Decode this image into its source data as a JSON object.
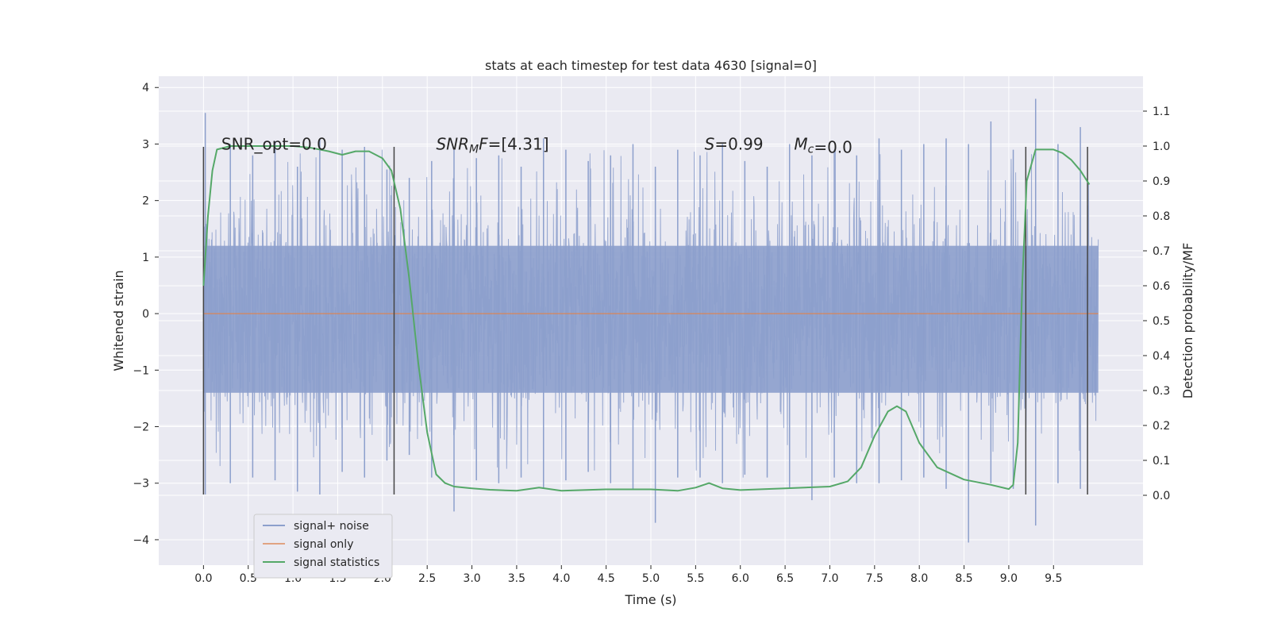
{
  "chart_data": {
    "type": "line",
    "title": "stats at each timestep for test data 4630 [signal=0]",
    "xlabel": "Time (s)",
    "ylabel_left": "Whitened strain",
    "ylabel_right": "Detection probability/MF",
    "xlim": [
      -0.5,
      10.5
    ],
    "ylim_left": [
      -4.45,
      4.2
    ],
    "ylim_right": [
      -0.2,
      1.2
    ],
    "x_ticks": [
      0.0,
      0.5,
      1.0,
      1.5,
      2.0,
      2.5,
      3.0,
      3.5,
      4.0,
      4.5,
      5.0,
      5.5,
      6.0,
      6.5,
      7.0,
      7.5,
      8.0,
      8.5,
      9.0,
      9.5
    ],
    "x_tick_labels": [
      "0.0",
      "0.5",
      "1.0",
      "1.5",
      "2.0",
      "2.5",
      "3.0",
      "3.5",
      "4.0",
      "4.5",
      "5.0",
      "5.5",
      "6.0",
      "6.5",
      "7.0",
      "7.5",
      "8.0",
      "8.5",
      "9.0",
      "9.5"
    ],
    "y_left_ticks": [
      -4,
      -3,
      -2,
      -1,
      0,
      1,
      2,
      3,
      4
    ],
    "y_left_tick_labels": [
      "−4",
      "−3",
      "−2",
      "−1",
      "0",
      "1",
      "2",
      "3",
      "4"
    ],
    "y_right_ticks": [
      0.0,
      0.1,
      0.2,
      0.3,
      0.4,
      0.5,
      0.6,
      0.7,
      0.8,
      0.9,
      1.0,
      1.1
    ],
    "y_right_tick_labels": [
      "0.0",
      "0.1",
      "0.2",
      "0.3",
      "0.4",
      "0.5",
      "0.6",
      "0.7",
      "0.8",
      "0.9",
      "1.0",
      "1.1"
    ],
    "grid": true,
    "legend_position": "lower-left",
    "annotations": [
      {
        "text": "SNR_opt=0.0",
        "x": 0.2,
        "y": 3.0
      },
      {
        "text": "SNR_MF=[4.31]",
        "x": 2.6,
        "y": 3.0
      },
      {
        "text": "S=0.99",
        "x": 5.6,
        "y": 3.0
      },
      {
        "text": "M_c=0.0",
        "x": 6.6,
        "y": 3.0
      }
    ],
    "window_markers": [
      {
        "x": 0.0,
        "y_bottom": -3.2,
        "y_top": 2.95
      },
      {
        "x": 2.13,
        "y_bottom": -3.2,
        "y_top": 2.95
      },
      {
        "x": 9.19,
        "y_bottom": -3.2,
        "y_top": 2.95
      },
      {
        "x": 9.88,
        "y_bottom": -3.2,
        "y_top": 2.95
      }
    ],
    "series": [
      {
        "name": "signal+ noise",
        "color": "#8c9fcc",
        "axis": "left",
        "x_range": [
          0.0,
          10.0
        ],
        "band": [
          -1.4,
          1.2
        ],
        "peak_x": [
          0.02,
          0.3,
          0.55,
          0.8,
          1.05,
          1.3,
          1.55,
          1.8,
          2.05,
          2.3,
          2.55,
          2.8,
          3.05,
          3.3,
          3.55,
          3.8,
          4.05,
          4.3,
          4.55,
          4.8,
          5.05,
          5.3,
          5.55,
          5.8,
          6.05,
          6.3,
          6.55,
          6.8,
          7.05,
          7.3,
          7.55,
          7.8,
          8.05,
          8.3,
          8.55,
          8.8,
          9.05,
          9.3,
          9.55,
          9.8
        ],
        "peak_max": [
          3.55,
          3.0,
          2.8,
          3.05,
          2.6,
          3.1,
          2.9,
          2.95,
          2.55,
          2.4,
          2.7,
          2.9,
          2.75,
          2.8,
          2.6,
          3.1,
          2.9,
          2.7,
          2.8,
          3.0,
          2.6,
          2.9,
          2.8,
          3.0,
          2.7,
          2.6,
          3.0,
          2.8,
          2.9,
          2.8,
          3.1,
          2.9,
          3.0,
          3.1,
          3.0,
          3.4,
          2.9,
          3.8,
          3.0,
          3.3
        ],
        "peak_min": [
          -3.2,
          -3.0,
          -2.9,
          -2.95,
          -3.15,
          -3.2,
          -2.8,
          -2.9,
          -2.6,
          -2.5,
          -2.9,
          -3.5,
          -2.95,
          -3.0,
          -2.9,
          -3.1,
          -2.95,
          -2.8,
          -3.0,
          -3.1,
          -3.7,
          -2.9,
          -2.9,
          -3.0,
          -2.85,
          -2.9,
          -3.1,
          -3.3,
          -2.9,
          -3.0,
          -3.0,
          -2.95,
          -2.9,
          -3.1,
          -4.05,
          -3.0,
          -3.1,
          -3.75,
          -3.0,
          -3.1
        ]
      },
      {
        "name": "signal only",
        "color": "#dd8452",
        "axis": "left",
        "x": [
          0.0,
          10.0
        ],
        "y": [
          0.0,
          0.0
        ]
      },
      {
        "name": "signal statistics",
        "color": "#55a868",
        "axis": "right",
        "x": [
          0.0,
          0.05,
          0.1,
          0.15,
          0.3,
          0.5,
          0.8,
          1.0,
          1.2,
          1.4,
          1.55,
          1.7,
          1.85,
          2.0,
          2.1,
          2.2,
          2.3,
          2.4,
          2.5,
          2.6,
          2.7,
          2.8,
          3.0,
          3.2,
          3.5,
          3.75,
          4.0,
          4.5,
          5.0,
          5.3,
          5.5,
          5.65,
          5.8,
          6.0,
          6.5,
          7.0,
          7.2,
          7.35,
          7.5,
          7.65,
          7.75,
          7.85,
          8.0,
          8.2,
          8.5,
          8.8,
          9.0,
          9.05,
          9.1,
          9.15,
          9.2,
          9.3,
          9.4,
          9.5,
          9.6,
          9.7,
          9.8,
          9.9
        ],
        "y": [
          0.6,
          0.8,
          0.93,
          0.99,
          1.0,
          1.0,
          1.0,
          1.0,
          0.995,
          0.985,
          0.975,
          0.985,
          0.985,
          0.965,
          0.93,
          0.82,
          0.62,
          0.38,
          0.18,
          0.06,
          0.035,
          0.025,
          0.02,
          0.016,
          0.013,
          0.022,
          0.013,
          0.017,
          0.017,
          0.013,
          0.022,
          0.035,
          0.02,
          0.015,
          0.02,
          0.025,
          0.04,
          0.08,
          0.17,
          0.24,
          0.255,
          0.24,
          0.15,
          0.08,
          0.045,
          0.03,
          0.018,
          0.03,
          0.15,
          0.6,
          0.9,
          0.99,
          0.99,
          0.99,
          0.98,
          0.96,
          0.93,
          0.89
        ]
      }
    ]
  }
}
